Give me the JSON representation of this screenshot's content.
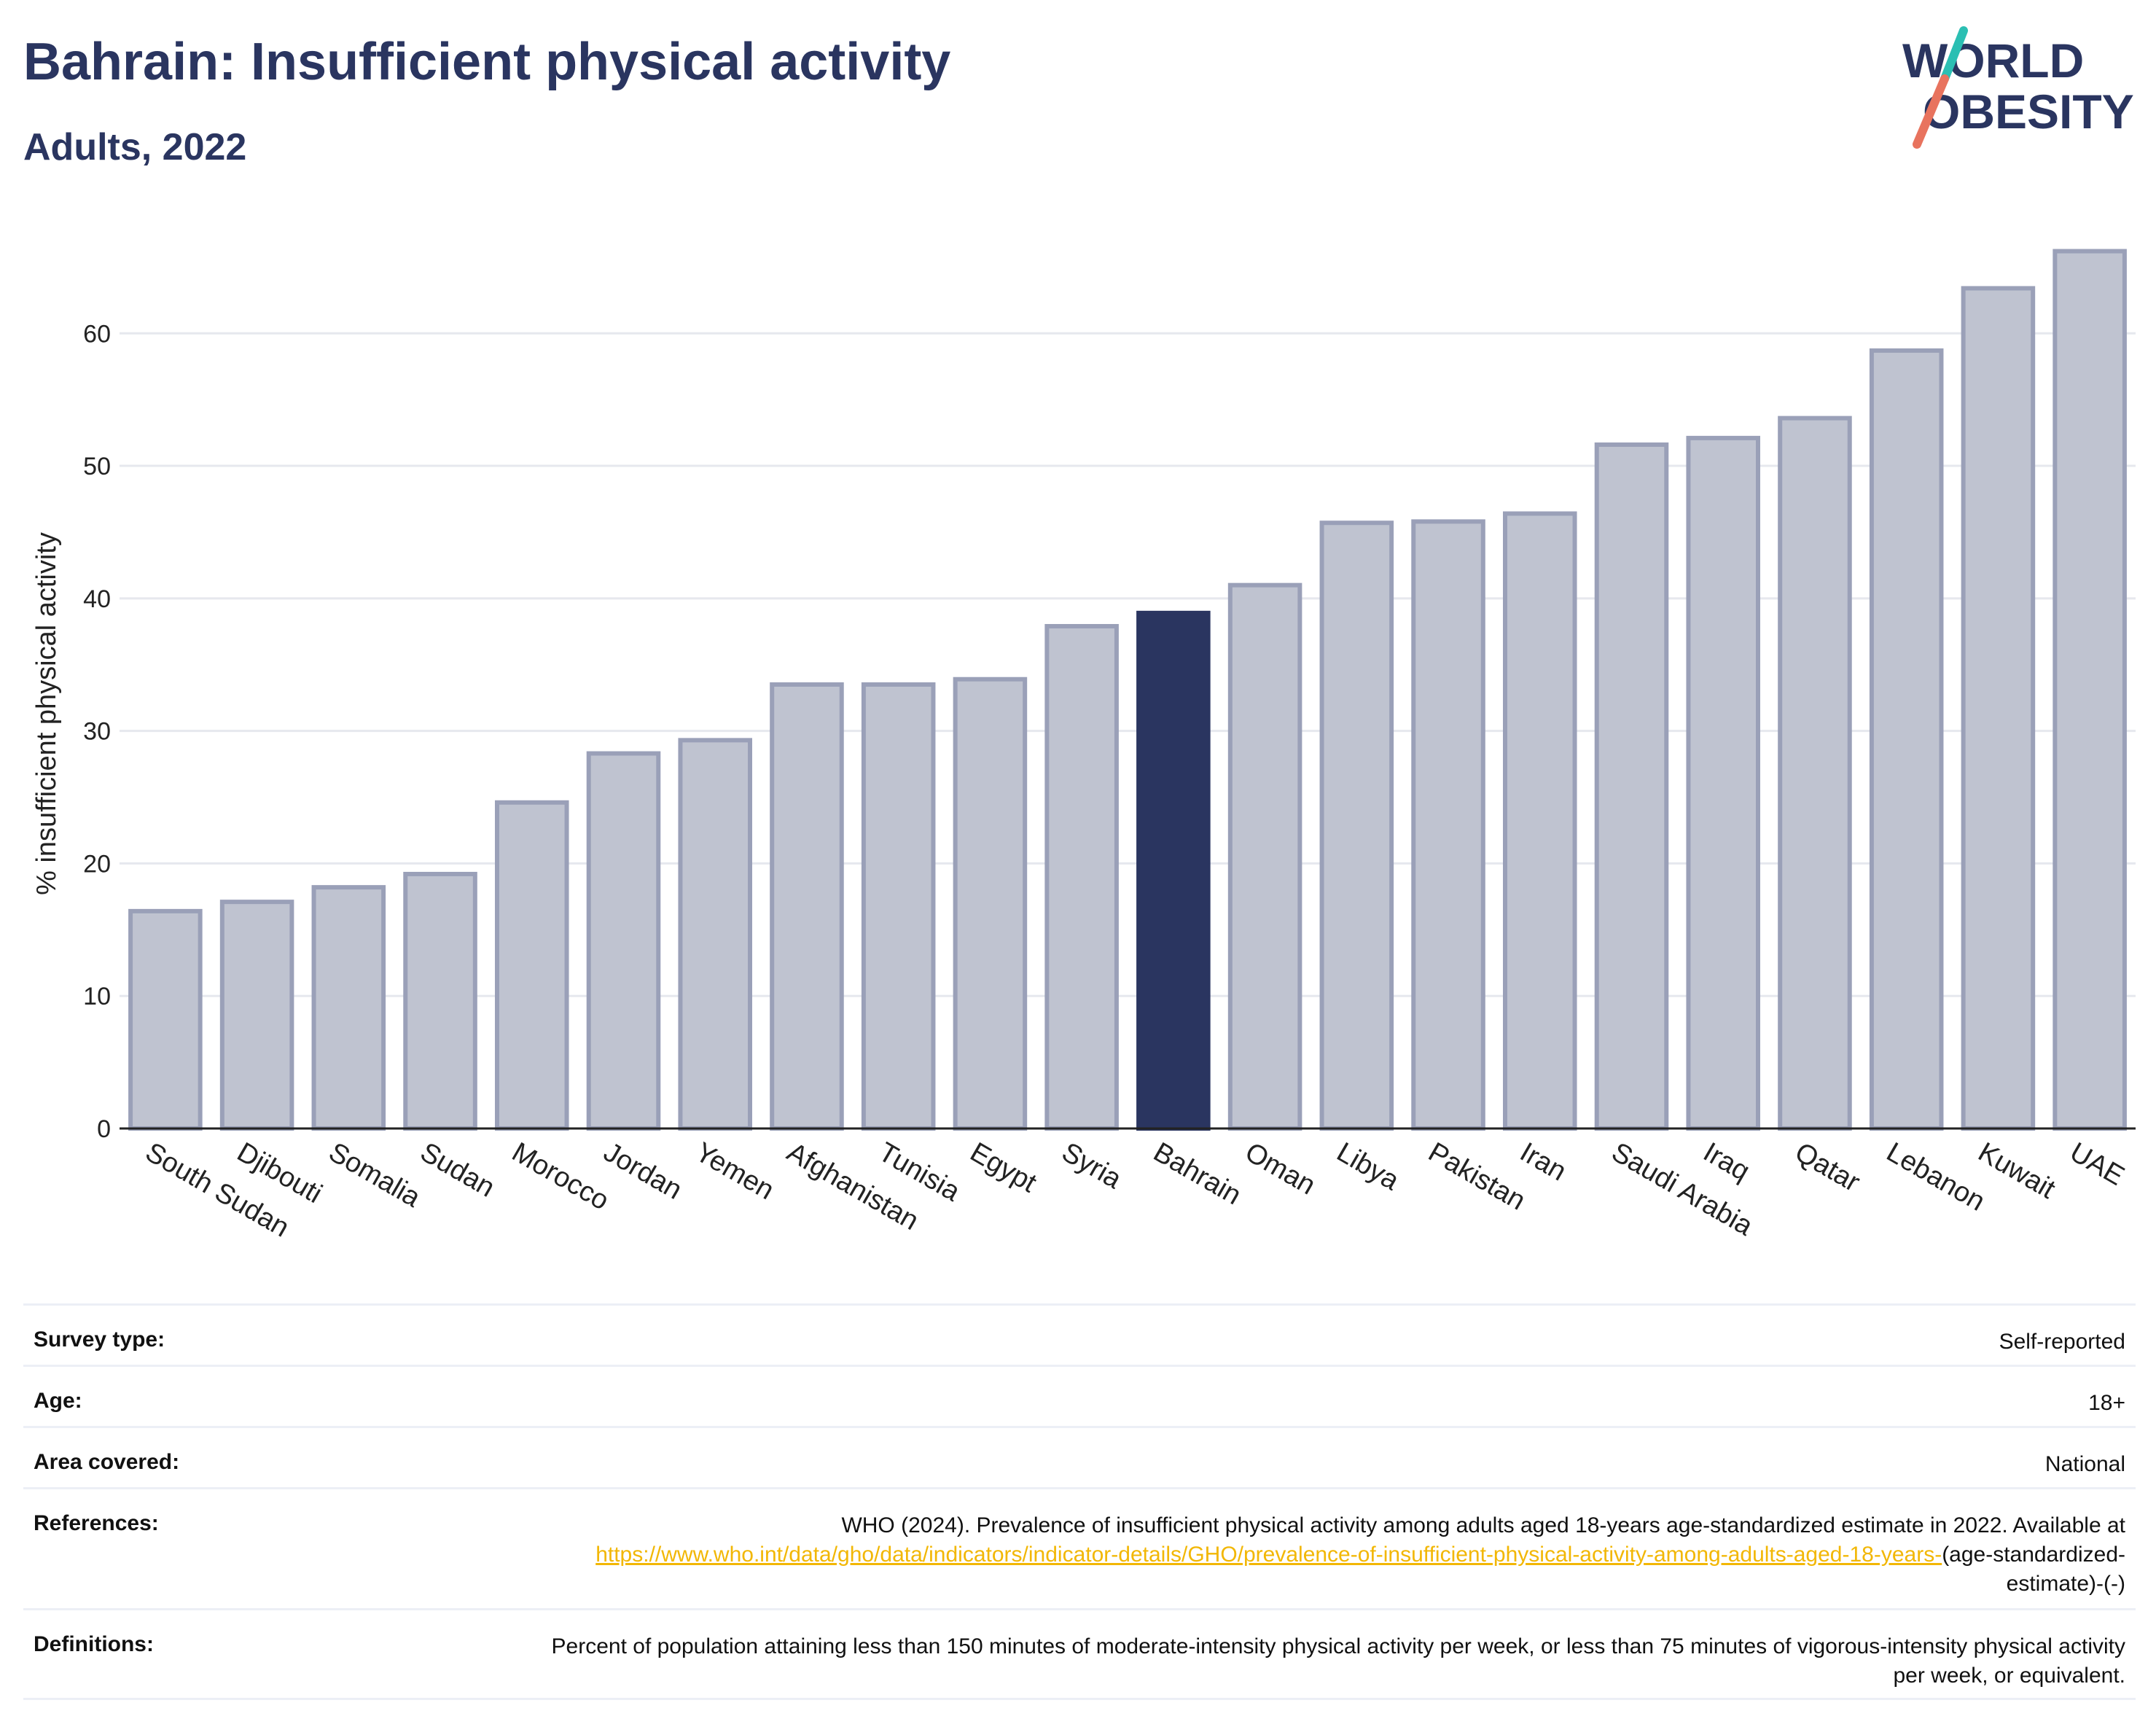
{
  "header": {
    "title": "Bahrain: Insufficient physical activity",
    "subtitle": "Adults, 2022"
  },
  "logo": {
    "line1": "WORLD",
    "line2": "OBESITY"
  },
  "chart_data": {
    "type": "bar",
    "title": "Bahrain: Insufficient physical activity",
    "subtitle": "Adults, 2022",
    "xlabel": "",
    "ylabel": "% insufficient physical activity",
    "ylim": [
      0,
      67
    ],
    "yticks": [
      0,
      10,
      20,
      30,
      40,
      50,
      60
    ],
    "grid": true,
    "highlight": "Bahrain",
    "colors": {
      "default_fill": "#bfc3d0",
      "default_stroke": "#9aa0b8",
      "highlight_fill": "#2a3560"
    },
    "categories": [
      "South Sudan",
      "Djibouti",
      "Somalia",
      "Sudan",
      "Morocco",
      "Jordan",
      "Yemen",
      "Afghanistan",
      "Tunisia",
      "Egypt",
      "Syria",
      "Bahrain",
      "Oman",
      "Libya",
      "Pakistan",
      "Iran",
      "Saudi Arabia",
      "Iraq",
      "Qatar",
      "Lebanon",
      "Kuwait",
      "UAE"
    ],
    "values": [
      16.4,
      17.1,
      18.2,
      19.2,
      24.6,
      28.3,
      29.3,
      33.5,
      33.5,
      33.9,
      37.9,
      38.9,
      41.0,
      45.7,
      45.8,
      46.4,
      51.6,
      52.1,
      53.6,
      58.7,
      63.4,
      66.2
    ]
  },
  "meta": {
    "survey_type_label": "Survey type:",
    "survey_type_value": "Self-reported",
    "age_label": "Age:",
    "age_value": "18+",
    "area_label": "Area covered:",
    "area_value": "National",
    "references_label": "References:",
    "references_text": "WHO (2024). Prevalence of insufficient physical activity among adults aged 18-years age-standardized estimate in 2022. Available at",
    "references_link": "https://www.who.int/data/gho/data/indicators/indicator-details/GHO/prevalence-of-insufficient-physical-activity-among-adults-aged-18-years-",
    "references_suffix": "(age-standardized-estimate)-(-)",
    "definitions_label": "Definitions:",
    "definitions_text": "Percent of population attaining less than 150 minutes of moderate-intensity physical activity per week, or less than 75 minutes of vigorous-intensity physical activity per week, or equivalent."
  }
}
